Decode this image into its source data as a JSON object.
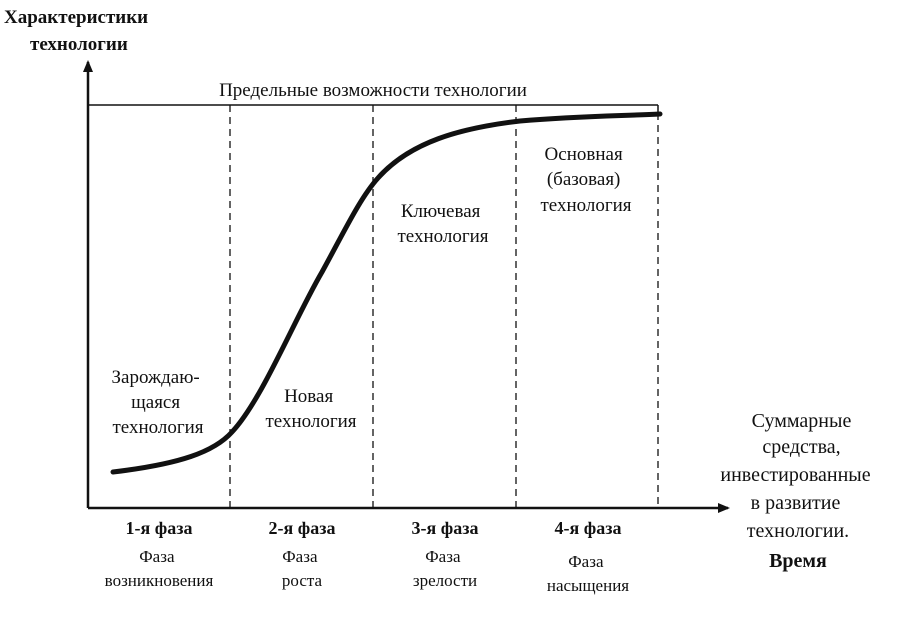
{
  "y_axis_title": [
    "Характеристики",
    "технологии"
  ],
  "x_axis_title": [
    "Суммарные",
    "средства,",
    "инвестированные",
    "в развитие",
    "технологии."
  ],
  "x_axis_title_last": "Время",
  "limit_label": "Предельные возможности технологии",
  "stages": [
    {
      "lines": [
        "Зарождаю-",
        "щаяся",
        "технология"
      ]
    },
    {
      "lines": [
        "Новая",
        "технология"
      ]
    },
    {
      "lines": [
        "Ключевая",
        "технология"
      ]
    },
    {
      "lines": [
        "Основная",
        "(базовая)",
        "технология"
      ]
    }
  ],
  "phases": [
    {
      "label": "1-я фаза",
      "sub": [
        "Фаза",
        "возникновения"
      ]
    },
    {
      "label": "2-я фаза",
      "sub": [
        "Фаза",
        "роста"
      ]
    },
    {
      "label": "3-я фаза",
      "sub": [
        "Фаза",
        "зрелости"
      ]
    },
    {
      "label": "4-я фаза",
      "sub": [
        "Фаза",
        "насыщения"
      ]
    }
  ]
}
